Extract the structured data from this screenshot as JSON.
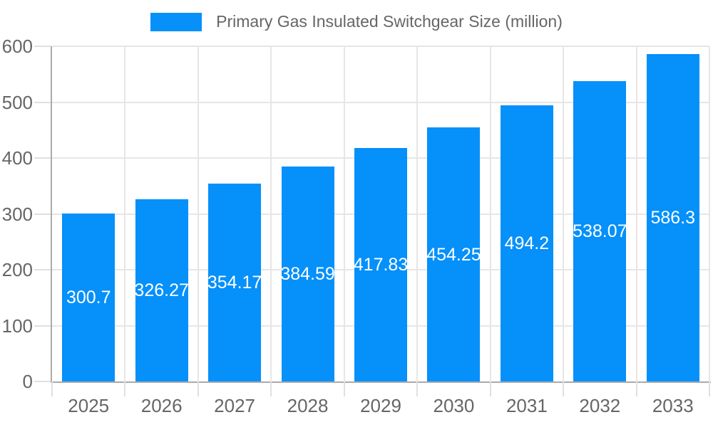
{
  "chart_data": {
    "type": "bar",
    "title": "Primary Gas Insulated Switchgear Size (million)",
    "legend": {
      "position": "top",
      "label": "Primary Gas Insulated Switchgear Size (million)"
    },
    "categories": [
      "2025",
      "2026",
      "2027",
      "2028",
      "2029",
      "2030",
      "2031",
      "2032",
      "2033"
    ],
    "series": [
      {
        "name": "Primary Gas Insulated Switchgear Size (million)",
        "values": [
          300.7,
          326.27,
          354.17,
          384.59,
          417.83,
          454.25,
          494.2,
          538.07,
          586.3
        ]
      }
    ],
    "xlabel": "",
    "ylabel": "",
    "ylim": [
      0,
      600
    ],
    "y_ticks": [
      0,
      100,
      200,
      300,
      400,
      500,
      600
    ],
    "grid": true,
    "value_labels_visible": true,
    "colors": {
      "bar": "#0590fa",
      "grid_line": "#e6e6e6",
      "axis_line": "#ababab",
      "tick_mark": "#e0e0e0",
      "tick_text": "#666666",
      "legend_text": "#666666",
      "bar_label_text": "#ffffff",
      "background": "#ffffff"
    }
  }
}
